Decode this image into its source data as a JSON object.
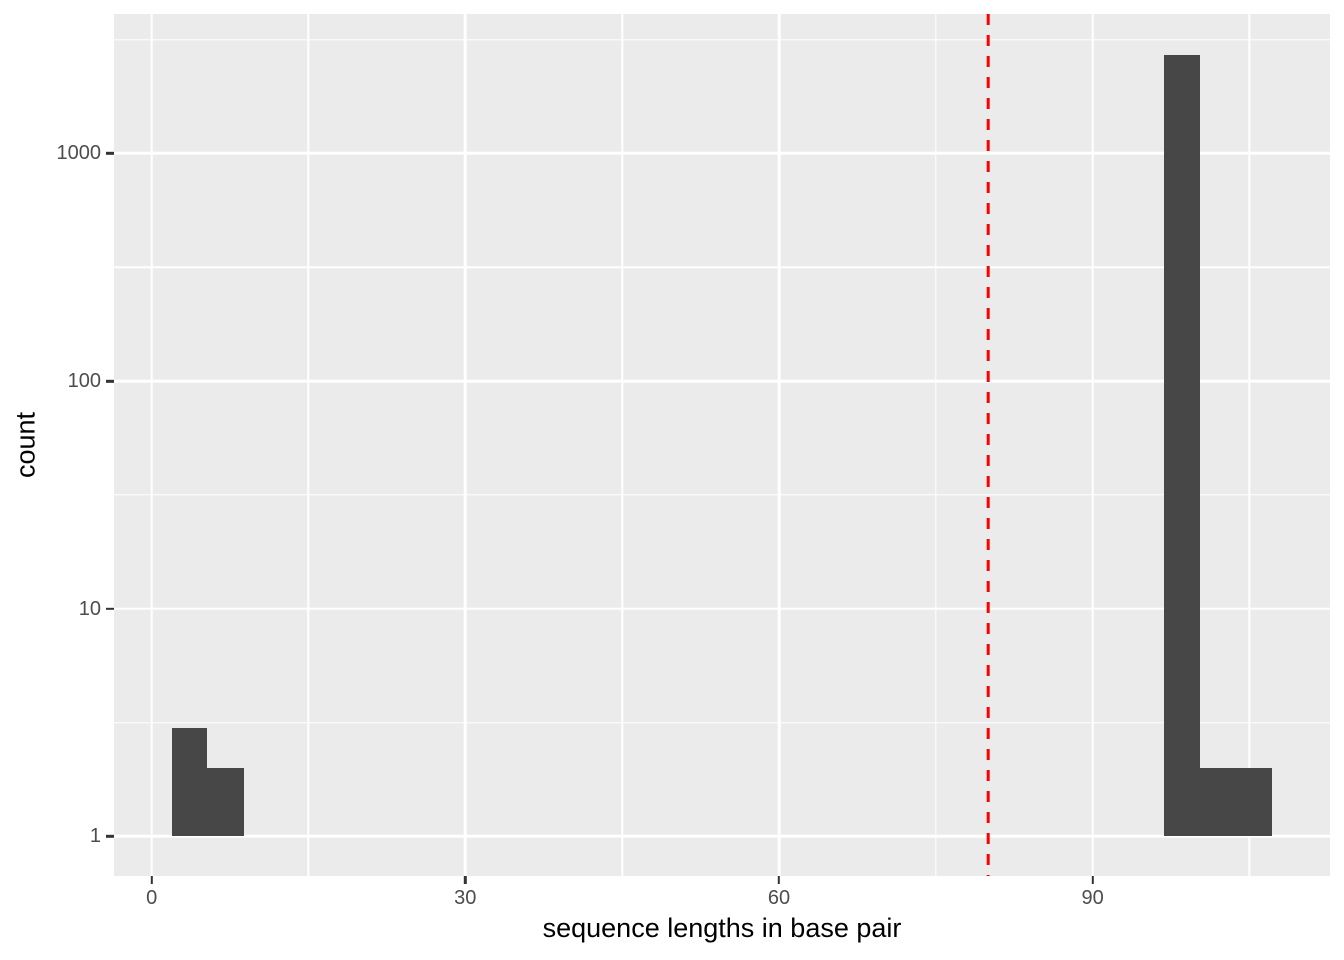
{
  "chart_data": {
    "type": "bar",
    "subtype": "histogram",
    "title": "",
    "xlabel": "sequence lengths in base pair",
    "ylabel": "count",
    "y_scale": "log10",
    "grid": true,
    "legend": "none",
    "xlim": [
      -3.6,
      112.7
    ],
    "ylim": [
      0.67,
      4100
    ],
    "x_ticks": [
      0,
      30,
      60,
      90
    ],
    "x_minor_ticks": [
      15,
      45,
      75,
      105
    ],
    "y_ticks": [
      1,
      10,
      100,
      1000
    ],
    "y_minor_ticks": [
      3.162,
      31.62,
      316.2,
      3162
    ],
    "baseline_count": 1,
    "bins": [
      {
        "x_start": 1.9,
        "x_end": 5.3,
        "count": 3
      },
      {
        "x_start": 5.3,
        "x_end": 8.8,
        "count": 2
      },
      {
        "x_start": 96.8,
        "x_end": 100.3,
        "count": 2700
      },
      {
        "x_start": 100.3,
        "x_end": 103.7,
        "count": 2
      },
      {
        "x_start": 103.7,
        "x_end": 107.2,
        "count": 2
      }
    ],
    "vline": {
      "x": 80,
      "style": "dashed",
      "color": "#FF0000"
    },
    "colors": {
      "bar": "#474747",
      "panel_bg": "#EBEBEB",
      "grid": "#FFFFFF",
      "tick_label": "#4D4D4D",
      "axis_title": "#000000",
      "tick_mark": "#333333",
      "figure_bg": "#FFFFFF"
    }
  }
}
